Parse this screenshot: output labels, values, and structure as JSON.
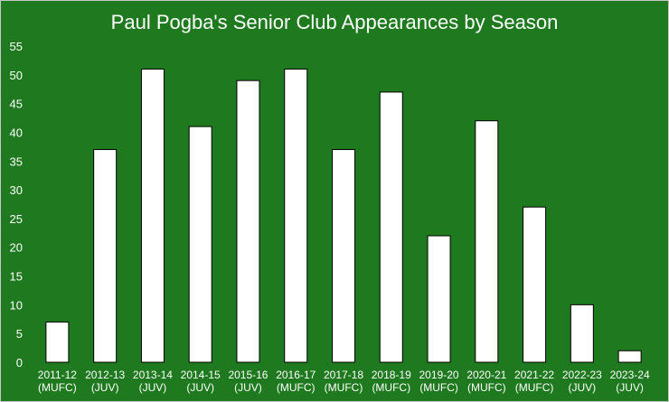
{
  "chart_data": {
    "type": "bar",
    "title": "Paul Pogba's Senior Club Appearances by Season",
    "xlabel": "",
    "ylabel": "",
    "categories": [
      [
        "2011-12",
        "(MUFC)"
      ],
      [
        "2012-13",
        "(JUV)"
      ],
      [
        "2013-14",
        "(JUV)"
      ],
      [
        "2014-15",
        "(JUV)"
      ],
      [
        "2015-16",
        "(JUV)"
      ],
      [
        "2016-17",
        "(MUFC)"
      ],
      [
        "2017-18",
        "(MUFC)"
      ],
      [
        "2018-19",
        "(MUFC)"
      ],
      [
        "2019-20",
        "(MUFC)"
      ],
      [
        "2020-21",
        "(MUFC)"
      ],
      [
        "2021-22",
        "(MUFC)"
      ],
      [
        "2022-23",
        "(JUV)"
      ],
      [
        "2023-24",
        "(JUV)"
      ]
    ],
    "values": [
      7,
      37,
      51,
      41,
      49,
      51,
      37,
      47,
      22,
      42,
      27,
      10,
      2
    ],
    "ylim": [
      0,
      55
    ],
    "yticks": [
      0,
      5,
      10,
      15,
      20,
      25,
      30,
      35,
      40,
      45,
      50,
      55
    ],
    "grid": false,
    "legend": "none",
    "colors": {
      "background": "#1f7a1f",
      "bar_fill": "#ffffff",
      "bar_stroke": "#000000",
      "text": "#ffffff"
    }
  }
}
